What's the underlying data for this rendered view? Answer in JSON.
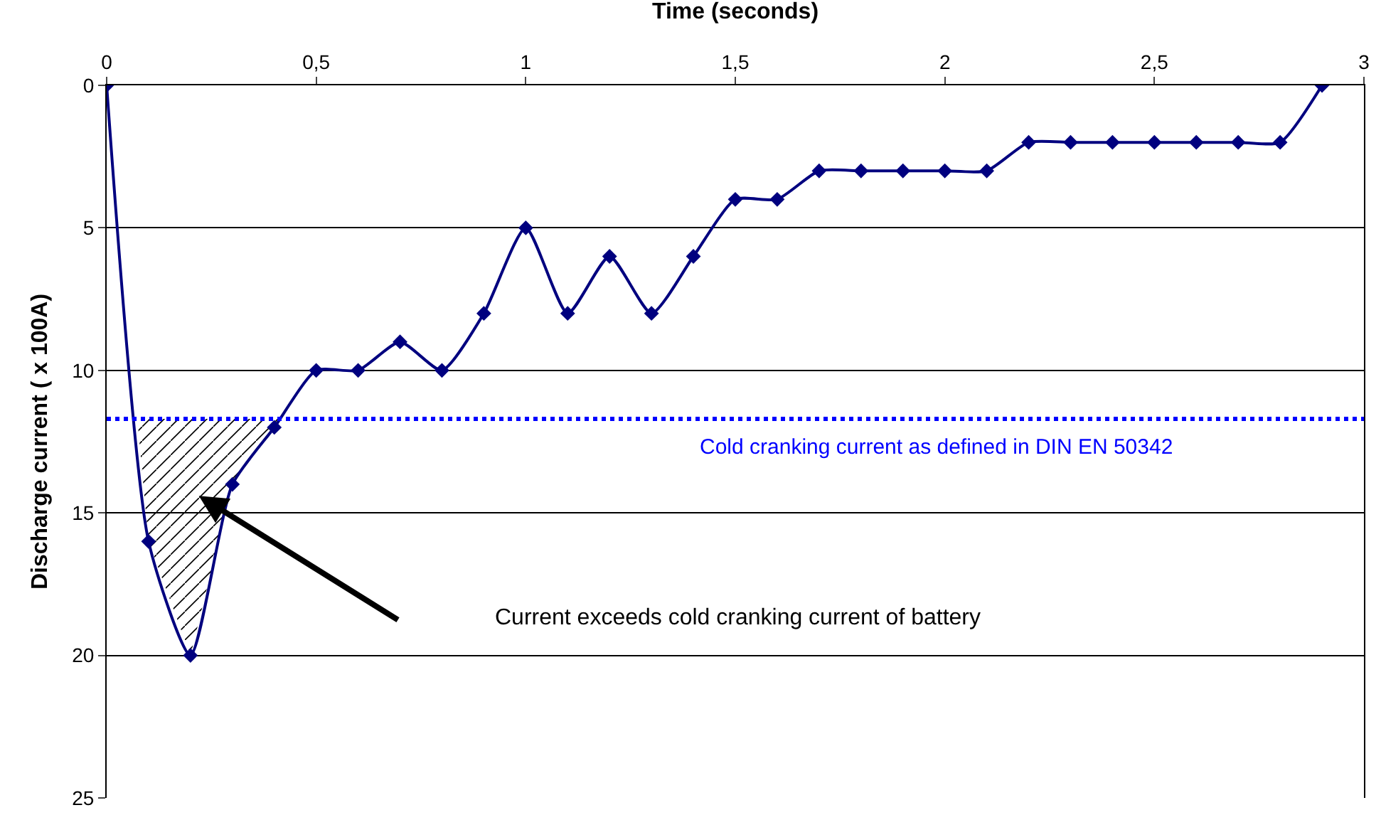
{
  "chart_data": {
    "type": "line",
    "xlabel": "Time (seconds)",
    "ylabel": "Discharge current ( x 100A)",
    "x": [
      0,
      0.1,
      0.2,
      0.3,
      0.4,
      0.5,
      0.6,
      0.7,
      0.8,
      0.9,
      1.0,
      1.1,
      1.2,
      1.3,
      1.4,
      1.5,
      1.6,
      1.7,
      1.8,
      1.9,
      2.0,
      2.1,
      2.2,
      2.3,
      2.4,
      2.5,
      2.6,
      2.7,
      2.8,
      2.9
    ],
    "series": [
      {
        "color": "#00007f",
        "values": [
          0,
          16,
          20,
          14,
          12,
          10,
          10,
          9,
          10,
          8,
          5,
          8,
          6,
          8,
          6,
          4,
          4,
          3,
          3,
          3,
          3,
          3,
          2,
          2,
          2,
          2,
          2,
          2,
          2,
          0
        ]
      }
    ],
    "marker": "diamond",
    "line_style": "solid",
    "grid": "y",
    "xlim": [
      0,
      3
    ],
    "xticks": [
      0,
      {
        "value": 0.5,
        "label": "0,5"
      },
      1,
      {
        "value": 1.5,
        "label": "1,5"
      },
      2,
      {
        "value": 2.5,
        "label": "2,5"
      },
      3
    ],
    "ylim": [
      25,
      0
    ],
    "yticks": [
      0,
      5,
      10,
      15,
      20,
      25
    ],
    "ref_lines": [
      {
        "axis": "y",
        "value": 11.7,
        "label": "Cold cranking current as defined in DIN EN 50342",
        "color": "#0000ff",
        "line_style": "dotted"
      }
    ],
    "annotations": [
      "Current exceeds cold cranking current of battery"
    ]
  }
}
